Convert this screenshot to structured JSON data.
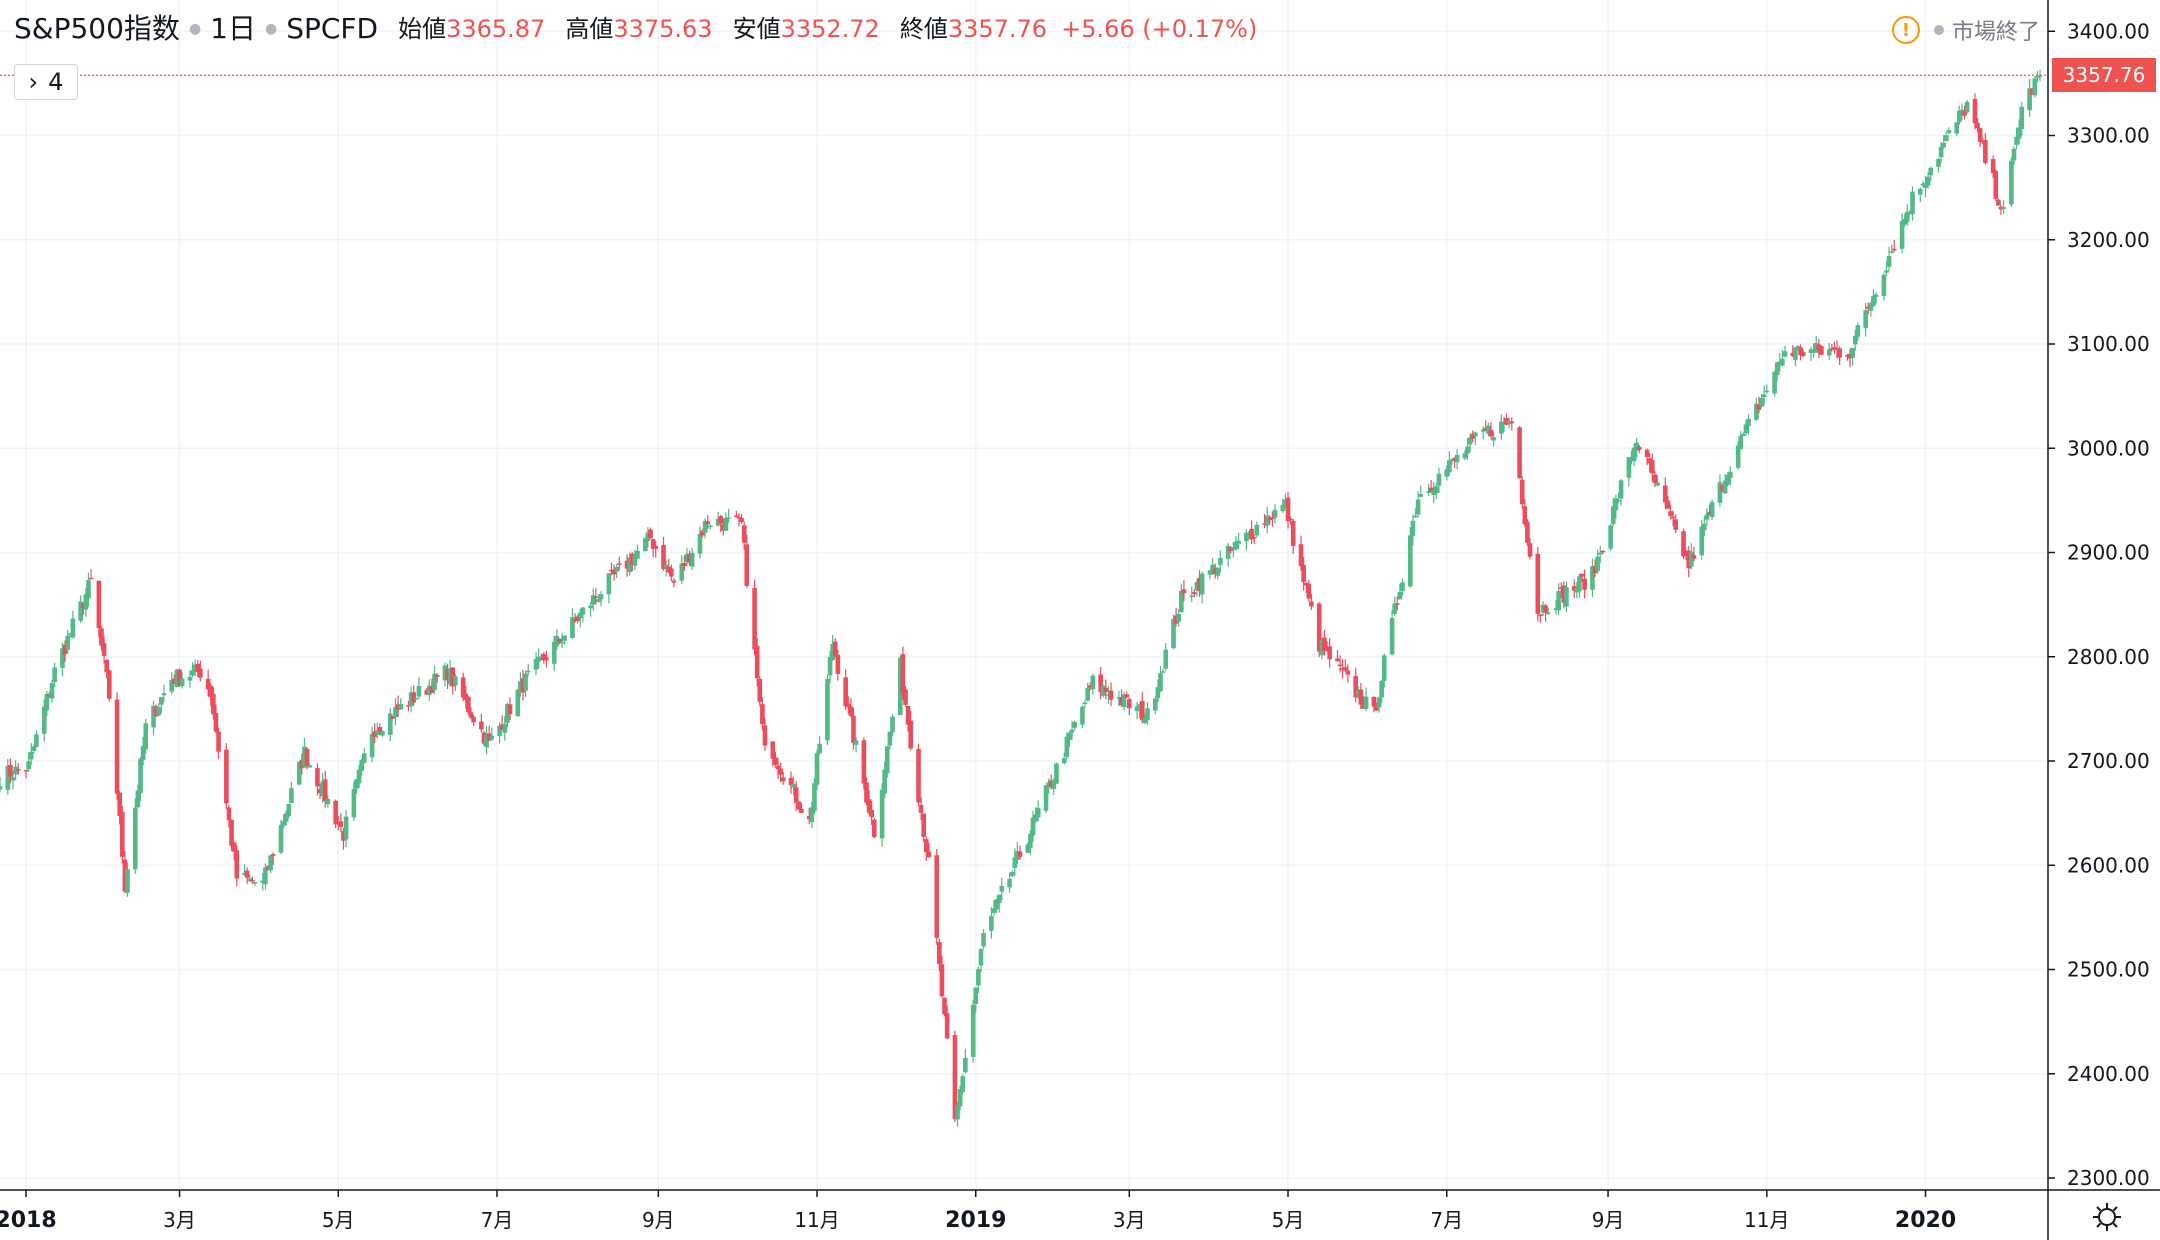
{
  "header": {
    "symbol": "S&P500指数",
    "interval": "1日",
    "source": "SPCFD",
    "open_label": "始値",
    "open_value": "3365.87",
    "high_label": "高値",
    "high_value": "3375.63",
    "low_label": "安値",
    "low_value": "3352.72",
    "close_label": "終値",
    "close_value": "3357.76",
    "change": "+5.66 (+0.17%)",
    "collapse_count": "4",
    "market_status": "市場終了",
    "warning_glyph": "!"
  },
  "colors": {
    "up": "#53b987",
    "down": "#eb4d5c",
    "grid": "#f0f3fa",
    "axis_text": "#131722",
    "price_line": "#ef5350",
    "warning": "#ff9800"
  },
  "icons": {
    "settings": "gear-icon",
    "collapse": "chevron-right-icon",
    "warning": "warning-icon"
  },
  "last_price_label": "3357.76",
  "chart_data": {
    "type": "candlestick",
    "title": "",
    "interval": "1日",
    "ylim": [
      2290,
      3420
    ],
    "y_ticks": [
      {
        "value": 2300,
        "label": "2300.00"
      },
      {
        "value": 2400,
        "label": "2400.00"
      },
      {
        "value": 2500,
        "label": "2500.00"
      },
      {
        "value": 2600,
        "label": "2600.00"
      },
      {
        "value": 2700,
        "label": "2700.00"
      },
      {
        "value": 2800,
        "label": "2800.00"
      },
      {
        "value": 2900,
        "label": "2900.00"
      },
      {
        "value": 3000,
        "label": "3000.00"
      },
      {
        "value": 3100,
        "label": "3100.00"
      },
      {
        "value": 3200,
        "label": "3200.00"
      },
      {
        "value": 3300,
        "label": "3300.00"
      },
      {
        "value": 3400,
        "label": "3400.00"
      }
    ],
    "x_ticks": [
      {
        "date": "2018-01-01",
        "label": "2018",
        "bold": true
      },
      {
        "date": "2018-03-01",
        "label": "3月",
        "bold": false
      },
      {
        "date": "2018-05-01",
        "label": "5月",
        "bold": false
      },
      {
        "date": "2018-07-01",
        "label": "7月",
        "bold": false
      },
      {
        "date": "2018-09-01",
        "label": "9月",
        "bold": false
      },
      {
        "date": "2018-11-01",
        "label": "11月",
        "bold": false
      },
      {
        "date": "2019-01-01",
        "label": "2019",
        "bold": true
      },
      {
        "date": "2019-03-01",
        "label": "3月",
        "bold": false
      },
      {
        "date": "2019-05-01",
        "label": "5月",
        "bold": false
      },
      {
        "date": "2019-07-01",
        "label": "7月",
        "bold": false
      },
      {
        "date": "2019-09-01",
        "label": "9月",
        "bold": false
      },
      {
        "date": "2019-11-01",
        "label": "11月",
        "bold": false
      },
      {
        "date": "2020-01-01",
        "label": "2020",
        "bold": true
      }
    ],
    "x_range": [
      "2017-12-22",
      "2020-02-14"
    ],
    "last_close": 3357.76,
    "series": [
      {
        "kind": "closing-price-outline",
        "points": [
          [
            "2017-12-22",
            2685
          ],
          [
            "2018-01-02",
            2695
          ],
          [
            "2018-01-12",
            2786
          ],
          [
            "2018-01-26",
            2872
          ],
          [
            "2018-02-02",
            2762
          ],
          [
            "2018-02-08",
            2581
          ],
          [
            "2018-02-16",
            2732
          ],
          [
            "2018-02-26",
            2779
          ],
          [
            "2018-03-09",
            2786
          ],
          [
            "2018-03-13",
            2765
          ],
          [
            "2018-03-23",
            2588
          ],
          [
            "2018-04-02",
            2582
          ],
          [
            "2018-04-18",
            2708
          ],
          [
            "2018-05-03",
            2630
          ],
          [
            "2018-05-14",
            2730
          ],
          [
            "2018-06-12",
            2786
          ],
          [
            "2018-06-28",
            2716
          ],
          [
            "2018-07-11",
            2774
          ],
          [
            "2018-08-08",
            2858
          ],
          [
            "2018-08-29",
            2914
          ],
          [
            "2018-09-07",
            2871
          ],
          [
            "2018-09-20",
            2931
          ],
          [
            "2018-10-03",
            2926
          ],
          [
            "2018-10-11",
            2728
          ],
          [
            "2018-10-29",
            2641
          ],
          [
            "2018-11-07",
            2814
          ],
          [
            "2018-11-23",
            2633
          ],
          [
            "2018-12-03",
            2790
          ],
          [
            "2018-12-14",
            2600
          ],
          [
            "2018-12-24",
            2351
          ],
          [
            "2019-01-04",
            2532
          ],
          [
            "2019-01-22",
            2633
          ],
          [
            "2019-02-15",
            2775
          ],
          [
            "2019-03-08",
            2743
          ],
          [
            "2019-03-21",
            2855
          ],
          [
            "2019-04-23",
            2934
          ],
          [
            "2019-04-30",
            2945
          ],
          [
            "2019-05-13",
            2812
          ],
          [
            "2019-06-03",
            2744
          ],
          [
            "2019-06-20",
            2954
          ],
          [
            "2019-07-15",
            3014
          ],
          [
            "2019-07-26",
            3026
          ],
          [
            "2019-08-05",
            2844
          ],
          [
            "2019-08-26",
            2878
          ],
          [
            "2019-09-12",
            3009
          ],
          [
            "2019-10-02",
            2888
          ],
          [
            "2019-10-18",
            2986
          ],
          [
            "2019-11-08",
            3093
          ],
          [
            "2019-12-03",
            3093
          ],
          [
            "2019-12-27",
            3240
          ],
          [
            "2020-01-17",
            3330
          ],
          [
            "2020-01-31",
            3225
          ],
          [
            "2020-02-07",
            3327
          ],
          [
            "2020-02-14",
            3358
          ]
        ]
      }
    ]
  }
}
